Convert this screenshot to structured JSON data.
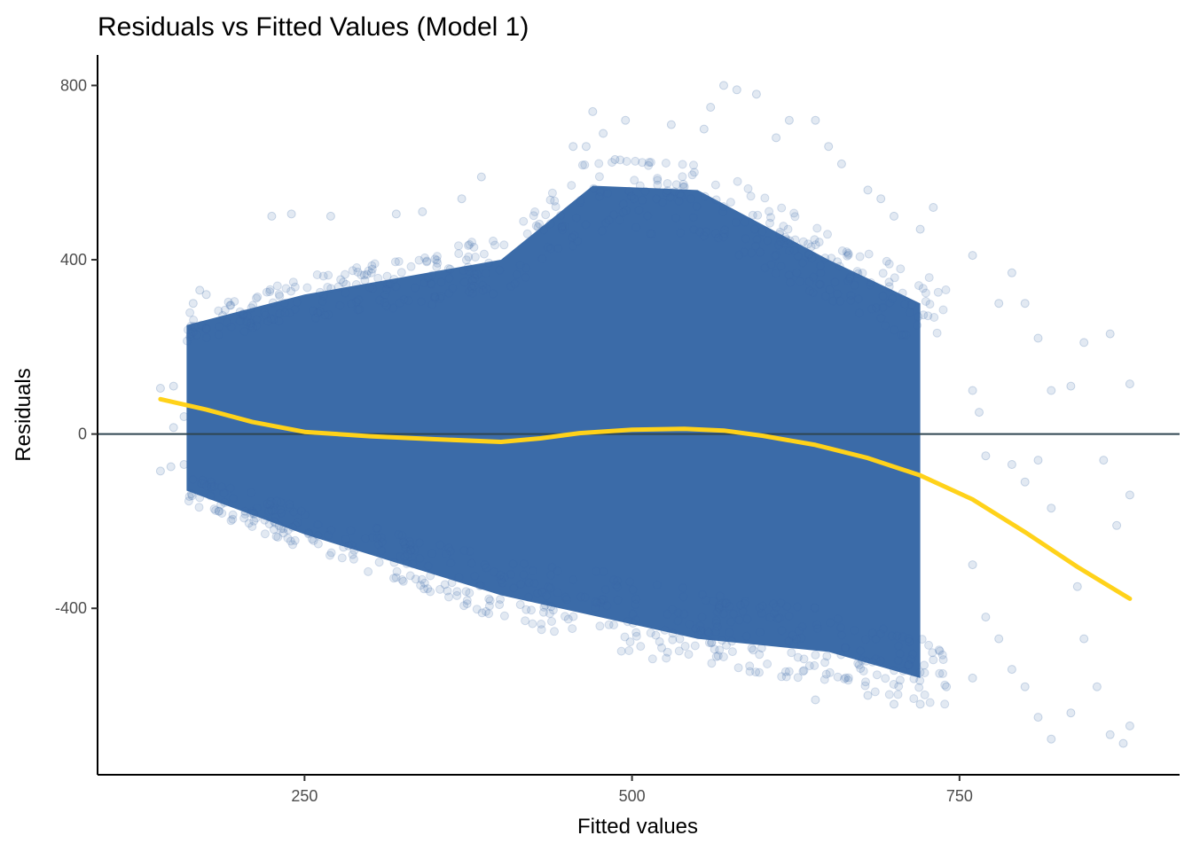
{
  "chart_data": {
    "type": "scatter",
    "title": "Residuals vs Fitted Values (Model 1)",
    "xlabel": "Fitted values",
    "ylabel": "Residuals",
    "xlim": [
      92,
      918
    ],
    "ylim": [
      -782,
      870
    ],
    "x_ticks": [
      250,
      500,
      750
    ],
    "x_tick_labels": [
      "250",
      "500",
      "750"
    ],
    "y_ticks": [
      -400,
      0,
      400,
      800
    ],
    "y_tick_labels": [
      "-400",
      "0",
      "400",
      "800"
    ],
    "grid": false,
    "reference_line": {
      "y": 0,
      "color": "#2f4550"
    },
    "colors": {
      "points": "#3b6ba8",
      "smooth": "#ffd21a",
      "axis": "#000000"
    },
    "point_cloud": {
      "approx_min_fitted": 140,
      "approx_max_fitted": 880,
      "lower_envelope": [
        [
          160,
          -130
        ],
        [
          250,
          -230
        ],
        [
          400,
          -370
        ],
        [
          550,
          -470
        ],
        [
          650,
          -500
        ],
        [
          720,
          -560
        ]
      ],
      "upper_envelope": [
        [
          160,
          250
        ],
        [
          250,
          320
        ],
        [
          400,
          400
        ],
        [
          470,
          570
        ],
        [
          550,
          560
        ],
        [
          650,
          400
        ],
        [
          720,
          300
        ]
      ]
    },
    "outlier_points": [
      [
        140,
        105
      ],
      [
        140,
        -85
      ],
      [
        148,
        -75
      ],
      [
        150,
        110
      ],
      [
        150,
        15
      ],
      [
        158,
        40
      ],
      [
        158,
        -70
      ],
      [
        165,
        300
      ],
      [
        170,
        330
      ],
      [
        175,
        320
      ],
      [
        225,
        500
      ],
      [
        240,
        505
      ],
      [
        270,
        500
      ],
      [
        320,
        505
      ],
      [
        340,
        510
      ],
      [
        370,
        540
      ],
      [
        385,
        590
      ],
      [
        455,
        660
      ],
      [
        465,
        660
      ],
      [
        470,
        740
      ],
      [
        478,
        690
      ],
      [
        487,
        630
      ],
      [
        495,
        720
      ],
      [
        530,
        710
      ],
      [
        555,
        700
      ],
      [
        560,
        750
      ],
      [
        570,
        800
      ],
      [
        580,
        790
      ],
      [
        595,
        780
      ],
      [
        610,
        680
      ],
      [
        620,
        720
      ],
      [
        640,
        720
      ],
      [
        650,
        660
      ],
      [
        660,
        620
      ],
      [
        680,
        560
      ],
      [
        690,
        540
      ],
      [
        700,
        500
      ],
      [
        720,
        470
      ],
      [
        730,
        520
      ],
      [
        760,
        410
      ],
      [
        780,
        300
      ],
      [
        790,
        370
      ],
      [
        800,
        300
      ],
      [
        810,
        220
      ],
      [
        820,
        100
      ],
      [
        835,
        110
      ],
      [
        845,
        210
      ],
      [
        865,
        230
      ],
      [
        880,
        115
      ],
      [
        760,
        100
      ],
      [
        765,
        50
      ],
      [
        770,
        -50
      ],
      [
        790,
        -70
      ],
      [
        800,
        -110
      ],
      [
        810,
        -60
      ],
      [
        820,
        -170
      ],
      [
        840,
        -350
      ],
      [
        860,
        -60
      ],
      [
        870,
        -210
      ],
      [
        880,
        -140
      ],
      [
        760,
        -300
      ],
      [
        770,
        -420
      ],
      [
        780,
        -470
      ],
      [
        790,
        -540
      ],
      [
        800,
        -580
      ],
      [
        810,
        -650
      ],
      [
        820,
        -700
      ],
      [
        835,
        -640
      ],
      [
        845,
        -470
      ],
      [
        855,
        -580
      ],
      [
        865,
        -690
      ],
      [
        875,
        -710
      ],
      [
        880,
        -670
      ],
      [
        640,
        -610
      ],
      [
        680,
        -600
      ],
      [
        700,
        -620
      ],
      [
        720,
        -620
      ],
      [
        740,
        -580
      ],
      [
        760,
        -560
      ]
    ],
    "smooth_curve": {
      "x": [
        140,
        175,
        210,
        250,
        300,
        350,
        400,
        430,
        460,
        500,
        540,
        570,
        600,
        640,
        680,
        720,
        760,
        800,
        840,
        880
      ],
      "y": [
        80,
        56,
        28,
        5,
        -5,
        -12,
        -18,
        -10,
        2,
        10,
        12,
        8,
        -4,
        -25,
        -55,
        -95,
        -150,
        -225,
        -305,
        -378
      ]
    }
  }
}
